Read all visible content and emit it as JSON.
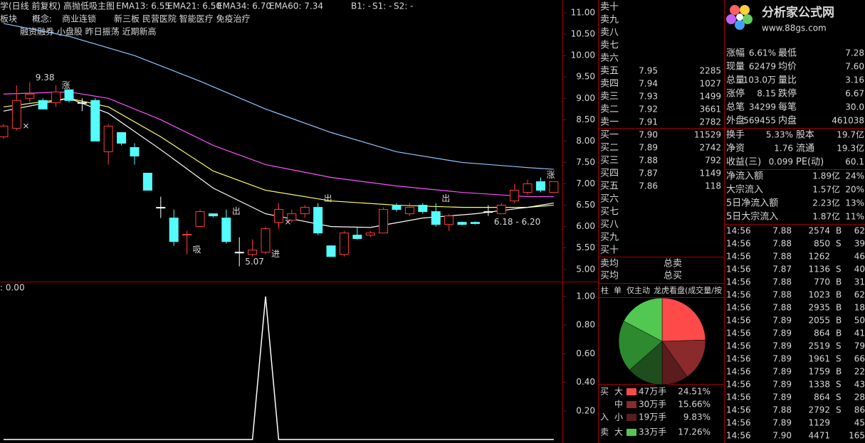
{
  "header": {
    "title": "学(日线 前复权) 高抛低吸主图",
    "ema": [
      {
        "text": "EMA13: 6.55",
        "color": "#ffffff"
      },
      {
        "text": "EMA21: 6.50",
        "color": "#ffff60"
      },
      {
        "text": "EMA34: 6.70",
        "color": "#ff50ff"
      },
      {
        "text": "EMA60: 7.34",
        "color": "#8ec8ff"
      }
    ],
    "signals": [
      {
        "text": "B1: -",
        "color": "#ff50ff"
      },
      {
        "text": "S1: -",
        "color": "#40ff40"
      },
      {
        "text": "S2: -",
        "color": "#40ff40"
      }
    ],
    "sector": "板块",
    "concept_label": "概念:",
    "concepts": [
      "商业连锁",
      "新三板 民营医院 智能医疗 免疫治疗"
    ],
    "tags": "融资融券 小盘股 昨日振荡 近期新高"
  },
  "chart_data": [
    {
      "type": "candlestick",
      "xlim": [
        -0.27,
        42.66
      ],
      "ylim": [
        4.73,
        11.3
      ],
      "yticks": [
        {
          "value": 5,
          "label": "5.00"
        },
        {
          "value": 5.5,
          "label": "5.50"
        },
        {
          "value": 6,
          "label": "6.00"
        },
        {
          "value": 6.5,
          "label": "6.50"
        },
        {
          "value": 7,
          "label": "7.00"
        },
        {
          "value": 7.5,
          "label": "7.50"
        },
        {
          "value": 8,
          "label": "8.00"
        },
        {
          "value": 8.5,
          "label": "8.50"
        },
        {
          "value": 9,
          "label": "9.00"
        },
        {
          "value": 9.5,
          "label": "9.50"
        },
        {
          "value": 10,
          "label": "10.00"
        },
        {
          "value": 10.5,
          "label": "10.50"
        },
        {
          "value": 11,
          "label": "11.00"
        }
      ],
      "up_color": "#ff3c3c",
      "down_color": "#54fcfc",
      "flat_color": "#ffffff",
      "open": [
        8.1,
        8.3,
        9.0,
        8.95,
        8.9,
        9.2,
        8.9,
        8.95,
        7.75,
        8.2,
        7.85,
        7.25,
        6.45,
        6.2,
        5.8,
        6.0,
        6.3,
        6.2,
        5.4,
        5.35,
        5.4,
        6.1,
        6.15,
        6.3,
        6.45,
        5.55,
        5.35,
        5.8,
        5.8,
        5.85,
        6.5,
        6.3,
        6.5,
        6.35,
        6.05,
        6.1,
        6.1,
        6.35,
        6.3,
        6.6,
        6.8,
        7.05,
        6.8
      ],
      "high": [
        8.4,
        9.3,
        9.38,
        9.0,
        9.3,
        9.2,
        9.0,
        9.0,
        8.4,
        8.2,
        7.95,
        7.25,
        6.7,
        6.4,
        5.9,
        6.4,
        6.3,
        6.4,
        5.75,
        5.7,
        6.0,
        6.55,
        6.4,
        6.5,
        6.55,
        5.55,
        5.9,
        6.0,
        5.9,
        6.45,
        6.55,
        6.55,
        6.55,
        6.55,
        6.3,
        6.12,
        6.12,
        6.5,
        6.55,
        7.0,
        7.1,
        7.15,
        7.05
      ],
      "low": [
        8.05,
        8.25,
        8.9,
        8.75,
        8.8,
        8.9,
        8.7,
        8.0,
        7.45,
        7.9,
        7.45,
        6.85,
        6.2,
        5.55,
        5.35,
        5.98,
        6.22,
        5.6,
        5.07,
        5.3,
        5.35,
        5.95,
        6.1,
        6.2,
        5.8,
        5.3,
        5.3,
        5.7,
        5.75,
        5.85,
        6.35,
        6.25,
        6.3,
        6.0,
        5.9,
        6.03,
        6.05,
        6.25,
        6.3,
        6.55,
        6.75,
        6.8,
        6.8
      ],
      "close": [
        8.35,
        8.95,
        9.1,
        8.75,
        9.15,
        8.95,
        8.9,
        8.0,
        8.35,
        7.95,
        7.65,
        6.85,
        6.45,
        5.65,
        5.82,
        6.35,
        6.25,
        5.65,
        5.4,
        5.45,
        5.95,
        6.4,
        6.3,
        6.45,
        5.85,
        5.3,
        5.85,
        5.72,
        5.85,
        6.4,
        6.4,
        6.45,
        6.35,
        6.05,
        6.25,
        6.05,
        6.07,
        6.35,
        6.5,
        6.85,
        7.0,
        6.85,
        7.05
      ],
      "series": [
        {
          "color": "#8ec8ff",
          "x": [
            0,
            5,
            10,
            15,
            20,
            25,
            30,
            35,
            40,
            42
          ],
          "values": [
            10.75,
            10.45,
            10.0,
            9.4,
            8.75,
            8.2,
            7.75,
            7.5,
            7.38,
            7.34
          ]
        },
        {
          "color": "#ff50ff",
          "x": [
            0,
            5,
            8,
            12,
            16,
            20,
            25,
            30,
            35,
            40,
            42
          ],
          "values": [
            9.1,
            9.15,
            9.0,
            8.5,
            7.9,
            7.45,
            7.15,
            6.95,
            6.8,
            6.7,
            6.7
          ]
        },
        {
          "color": "#ffff60",
          "x": [
            0,
            5,
            8,
            12,
            16,
            20,
            25,
            30,
            35,
            40,
            42
          ],
          "values": [
            8.8,
            9.0,
            8.8,
            8.1,
            7.3,
            6.85,
            6.6,
            6.5,
            6.45,
            6.45,
            6.5
          ]
        },
        {
          "color": "#ffffff",
          "x": [
            0,
            5,
            8,
            12,
            16,
            20,
            25,
            28,
            32,
            36,
            40,
            42
          ],
          "values": [
            8.7,
            9.0,
            8.65,
            7.8,
            6.9,
            6.3,
            6.0,
            5.98,
            6.2,
            6.3,
            6.45,
            6.55
          ]
        }
      ],
      "annotations": [
        {
          "text": "9.38",
          "x": 2,
          "y": 9.38,
          "color": "#ffffff"
        },
        {
          "text": "5.07",
          "x": 18,
          "y": 5.07,
          "color": "#ffffff"
        },
        {
          "text": "6.18 - 6.20",
          "x": 37,
          "y": 6.0,
          "color": "#ffffff"
        },
        {
          "text": "吸",
          "x": 14,
          "y": 5.35,
          "color": "#ffffff"
        },
        {
          "text": "进",
          "x": 20,
          "y": 5.25,
          "color": "#ff50ff"
        },
        {
          "text": "出",
          "x": 17,
          "y": 6.25,
          "color": "#40ff40"
        },
        {
          "text": "出",
          "x": 24,
          "y": 6.55,
          "color": "#40ff40"
        },
        {
          "text": "出",
          "x": 33,
          "y": 6.55,
          "color": "#40ff40"
        },
        {
          "text": "涨",
          "x": 4,
          "y": 9.2,
          "color": "#40ff40"
        },
        {
          "text": "涨",
          "x": 41,
          "y": 7.1,
          "color": "#40ff40"
        },
        {
          "text": "×",
          "x": 1,
          "y": 8.25,
          "color": "#ff50ff"
        },
        {
          "text": "×",
          "x": 21,
          "y": 6.0,
          "color": "#ff50ff"
        }
      ]
    },
    {
      "type": "line",
      "label": ": 0.00",
      "xlim": [
        -0.27,
        42.66
      ],
      "ylim": [
        -0.024,
        1.099
      ],
      "yticks": [
        {
          "value": 0.2,
          "label": "0.20"
        },
        {
          "value": 0.4,
          "label": "0.40"
        },
        {
          "value": 0.6,
          "label": "0.60"
        },
        {
          "value": 0.8,
          "label": "0.80"
        },
        {
          "value": 1,
          "label": "1.00"
        }
      ],
      "color": "#ffffff",
      "values": [
        0,
        0,
        0,
        0,
        0,
        0,
        0,
        0,
        0,
        0,
        0,
        0,
        0,
        0,
        0,
        0,
        0,
        0,
        0,
        0,
        1,
        0,
        0,
        0,
        0,
        0,
        0,
        0,
        0,
        0,
        0,
        0,
        0,
        0,
        0,
        0,
        0,
        0,
        0,
        0,
        0,
        0,
        0
      ]
    },
    {
      "type": "pie",
      "tabs": [
        "柱",
        "单",
        "仅主动",
        "龙虎看盘(成交量/按"
      ],
      "groups": [
        "买",
        "入",
        "卖"
      ],
      "categories": [
        "大",
        "中",
        "小",
        null,
        null,
        "大"
      ],
      "amounts": [
        "47万手",
        "30万手",
        "19万手",
        null,
        null,
        "33万手"
      ],
      "value_labels": [
        "24.51%",
        "15.66%",
        "9.83%",
        null,
        null,
        "17.26%"
      ],
      "values": [
        24.51,
        15.66,
        9.83,
        13.5,
        19.24,
        17.26
      ],
      "colors": [
        "#ff4a4a",
        "#8a2a2a",
        "#5a1c1c",
        "#1e4e1e",
        "#2e8a2e",
        "#52c852"
      ]
    }
  ],
  "order_book": {
    "asks": [
      {
        "label": "卖十",
        "price": null,
        "volume": null
      },
      {
        "label": "卖九",
        "price": null,
        "volume": null
      },
      {
        "label": "卖八",
        "price": null,
        "volume": null
      },
      {
        "label": "卖七",
        "price": null,
        "volume": null
      },
      {
        "label": "卖六",
        "price": null,
        "volume": null
      },
      {
        "label": "卖五",
        "price": "7.95",
        "volume": "2285"
      },
      {
        "label": "卖四",
        "price": "7.94",
        "volume": "1027"
      },
      {
        "label": "卖三",
        "price": "7.93",
        "volume": "1499"
      },
      {
        "label": "卖二",
        "price": "7.92",
        "volume": "3661"
      },
      {
        "label": "卖一",
        "price": "7.91",
        "volume": "2782"
      }
    ],
    "bids": [
      {
        "label": "买一",
        "price": "7.90",
        "volume": "11529"
      },
      {
        "label": "买二",
        "price": "7.89",
        "volume": "2742"
      },
      {
        "label": "买三",
        "price": "7.88",
        "volume": "792"
      },
      {
        "label": "买四",
        "price": "7.87",
        "volume": "1149"
      },
      {
        "label": "买五",
        "price": "7.86",
        "volume": "118"
      },
      {
        "label": "买六",
        "price": null,
        "volume": null
      },
      {
        "label": "买七",
        "price": null,
        "volume": null
      },
      {
        "label": "买八",
        "price": null,
        "volume": null
      },
      {
        "label": "买九",
        "price": null,
        "volume": null
      },
      {
        "label": "买十",
        "price": null,
        "volume": null
      }
    ],
    "avg_sell": "卖均",
    "total_sell": "总卖",
    "avg_buy": "买均",
    "total_buy": "总买"
  },
  "logo": {
    "name": "分析家公式网",
    "url": "www.88gs.com"
  },
  "quote": {
    "rows": [
      {
        "cells": [
          "涨幅",
          "6.61%",
          "最低",
          "7.28"
        ],
        "colors": [
          "#e0e0e0",
          "#ff4040",
          "#e0e0e0",
          "#40ff40"
        ]
      },
      {
        "cells": [
          "现量",
          "62479",
          "均价",
          "7.60"
        ],
        "colors": [
          "#e0e0e0",
          "#ff50ff",
          "#e0e0e0",
          "#ff4040"
        ]
      },
      {
        "cells": [
          "总量",
          "103.0万",
          "量比",
          "3.16"
        ],
        "colors": [
          "#e0e0e0",
          "#ffffff",
          "#e0e0e0",
          "#ff4040"
        ]
      },
      {
        "cells": [
          "涨停",
          "8.15",
          "跌停",
          "6.67"
        ],
        "colors": [
          "#e0e0e0",
          "#ff4040",
          "#e0e0e0",
          "#40ff40"
        ]
      },
      {
        "cells": [
          "总笔",
          "34299",
          "每笔",
          "30.0"
        ],
        "colors": [
          "#e0e0e0",
          "#ffffff",
          "#e0e0e0",
          "#ffffff"
        ]
      },
      {
        "cells": [
          "外盘",
          "569455",
          "内盘",
          "461038"
        ],
        "colors": [
          "#e0e0e0",
          "#ff4040",
          "#e0e0e0",
          "#40ff40"
        ]
      }
    ],
    "info": [
      {
        "cells": [
          "换手",
          "5.33%",
          "股本",
          "19.7亿"
        ]
      },
      {
        "cells": [
          "净资",
          "1.76",
          "流通",
          "19.3亿"
        ]
      },
      {
        "cells": [
          "收益(三)",
          "0.099",
          "PE(动)",
          "60.1"
        ]
      }
    ],
    "flows": [
      {
        "label": "净流入额",
        "amount": "1.89亿",
        "pct": "24%"
      },
      {
        "label": "大宗流入",
        "amount": "1.57亿",
        "pct": "20%"
      },
      {
        "label": "5日净流入额",
        "amount": "2.23亿",
        "pct": "13%"
      },
      {
        "label": "5日大宗流入",
        "amount": "1.87亿",
        "pct": "11%"
      }
    ]
  },
  "ticks": [
    [
      "14:56",
      "7.88",
      "2574",
      "B",
      "62"
    ],
    [
      "14:56",
      "7.88",
      "850",
      "S",
      "39"
    ],
    [
      "14:56",
      "7.88",
      "1262",
      null,
      "46"
    ],
    [
      "14:56",
      "7.87",
      "1136",
      "S",
      "40"
    ],
    [
      "14:56",
      "7.88",
      "770",
      "B",
      "31"
    ],
    [
      "14:56",
      "7.88",
      "1023",
      "B",
      "62"
    ],
    [
      "14:56",
      "7.88",
      "2935",
      "B",
      "18"
    ],
    [
      "14:56",
      "7.89",
      "2055",
      "B",
      "50"
    ],
    [
      "14:56",
      "7.89",
      "864",
      "B",
      "41"
    ],
    [
      "14:56",
      "7.89",
      "2519",
      "S",
      "79"
    ],
    [
      "14:56",
      "7.89",
      "1961",
      "S",
      "66"
    ],
    [
      "14:56",
      "7.89",
      "1759",
      "B",
      "22"
    ],
    [
      "14:56",
      "7.89",
      "1338",
      "S",
      "43"
    ],
    [
      "14:56",
      "7.89",
      "864",
      "S",
      "28"
    ],
    [
      "14:56",
      "7.88",
      "2792",
      "S",
      "86"
    ],
    [
      "14:56",
      "7.89",
      "1129",
      null,
      "45"
    ],
    [
      "14:56",
      "7.90",
      "4471",
      null,
      "165"
    ]
  ]
}
